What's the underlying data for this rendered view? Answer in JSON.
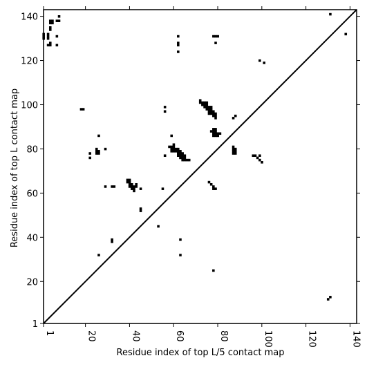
{
  "chart_data": {
    "type": "heatmap",
    "title": "",
    "xlabel": "Residue index of top L/5 contact map",
    "ylabel": "Residue index of top L contact map",
    "xlim": [
      1,
      143
    ],
    "ylim": [
      1,
      143
    ],
    "x_ticks": [
      1,
      20,
      40,
      60,
      80,
      100,
      120,
      140
    ],
    "y_ticks": [
      1,
      20,
      40,
      60,
      80,
      100,
      120,
      140
    ],
    "diagonal_line": true,
    "colors": {
      "contact": "#000000",
      "background": "#ffffff",
      "axes": "#000000"
    },
    "contacts_above_diagonal": [
      [
        1,
        130
      ],
      [
        1,
        131
      ],
      [
        1,
        132
      ],
      [
        3,
        127
      ],
      [
        3,
        130
      ],
      [
        3,
        131
      ],
      [
        3,
        132
      ],
      [
        4,
        127
      ],
      [
        4,
        128
      ],
      [
        4,
        134
      ],
      [
        4,
        135
      ],
      [
        4,
        137
      ],
      [
        4,
        138
      ],
      [
        5,
        137
      ],
      [
        5,
        138
      ],
      [
        7,
        127
      ],
      [
        7,
        131
      ],
      [
        7,
        138
      ],
      [
        8,
        138
      ],
      [
        8,
        140
      ],
      [
        18,
        98
      ],
      [
        19,
        98
      ],
      [
        22,
        76
      ],
      [
        22,
        78
      ],
      [
        25,
        78
      ],
      [
        25,
        79
      ],
      [
        25,
        80
      ],
      [
        26,
        78
      ],
      [
        26,
        79
      ],
      [
        26,
        86
      ],
      [
        29,
        80
      ],
      [
        32,
        38
      ],
      [
        32,
        39
      ],
      [
        39,
        65
      ],
      [
        39,
        66
      ],
      [
        40,
        63
      ],
      [
        40,
        64
      ],
      [
        40,
        65
      ],
      [
        40,
        66
      ],
      [
        41,
        62
      ],
      [
        41,
        63
      ],
      [
        41,
        64
      ],
      [
        42,
        61
      ],
      [
        42,
        62
      ],
      [
        42,
        63
      ],
      [
        43,
        63
      ],
      [
        43,
        64
      ],
      [
        45,
        62
      ],
      [
        45,
        52
      ],
      [
        45,
        53
      ],
      [
        56,
        77
      ],
      [
        56,
        97
      ],
      [
        56,
        99
      ],
      [
        58,
        81
      ],
      [
        59,
        79
      ],
      [
        59,
        80
      ],
      [
        59,
        81
      ],
      [
        59,
        86
      ],
      [
        60,
        79
      ],
      [
        60,
        80
      ],
      [
        60,
        81
      ],
      [
        60,
        82
      ],
      [
        61,
        79
      ],
      [
        61,
        80
      ],
      [
        62,
        77
      ],
      [
        62,
        78
      ],
      [
        62,
        79
      ],
      [
        62,
        80
      ],
      [
        63,
        76
      ],
      [
        63,
        77
      ],
      [
        63,
        78
      ],
      [
        63,
        79
      ],
      [
        64,
        75
      ],
      [
        64,
        76
      ],
      [
        64,
        77
      ],
      [
        64,
        78
      ],
      [
        65,
        75
      ],
      [
        65,
        76
      ],
      [
        65,
        77
      ],
      [
        66,
        75
      ],
      [
        67,
        75
      ],
      [
        62,
        124
      ],
      [
        62,
        127
      ],
      [
        62,
        128
      ],
      [
        62,
        131
      ],
      [
        72,
        101
      ],
      [
        72,
        102
      ],
      [
        73,
        100
      ],
      [
        73,
        101
      ],
      [
        74,
        99
      ],
      [
        74,
        100
      ],
      [
        74,
        101
      ],
      [
        75,
        98
      ],
      [
        75,
        99
      ],
      [
        75,
        100
      ],
      [
        75,
        101
      ],
      [
        76,
        96
      ],
      [
        76,
        97
      ],
      [
        76,
        98
      ],
      [
        76,
        99
      ],
      [
        77,
        96
      ],
      [
        77,
        97
      ],
      [
        77,
        98
      ],
      [
        77,
        99
      ],
      [
        78,
        95
      ],
      [
        78,
        96
      ],
      [
        78,
        97
      ],
      [
        79,
        94
      ],
      [
        79,
        95
      ],
      [
        79,
        96
      ],
      [
        77,
        88
      ],
      [
        78,
        86
      ],
      [
        78,
        87
      ],
      [
        78,
        88
      ],
      [
        78,
        89
      ],
      [
        79,
        86
      ],
      [
        79,
        87
      ],
      [
        79,
        88
      ],
      [
        79,
        89
      ],
      [
        80,
        86
      ],
      [
        80,
        87
      ],
      [
        81,
        87
      ],
      [
        78,
        131
      ],
      [
        79,
        128
      ],
      [
        79,
        131
      ],
      [
        80,
        131
      ],
      [
        87,
        94
      ],
      [
        88,
        95
      ],
      [
        99,
        120
      ],
      [
        101,
        119
      ],
      [
        131,
        141
      ]
    ],
    "contacts_below_diagonal": [
      [
        26,
        32
      ],
      [
        29,
        63
      ],
      [
        32,
        63
      ],
      [
        33,
        63
      ],
      [
        53,
        45
      ],
      [
        55,
        62
      ],
      [
        63,
        32
      ],
      [
        63,
        39
      ],
      [
        76,
        65
      ],
      [
        77,
        64
      ],
      [
        78,
        63
      ],
      [
        78,
        62
      ],
      [
        79,
        62
      ],
      [
        78,
        25
      ],
      [
        87,
        78
      ],
      [
        87,
        79
      ],
      [
        87,
        80
      ],
      [
        87,
        81
      ],
      [
        88,
        78
      ],
      [
        88,
        79
      ],
      [
        88,
        80
      ],
      [
        96,
        77
      ],
      [
        97,
        77
      ],
      [
        98,
        76
      ],
      [
        99,
        75
      ],
      [
        99,
        77
      ],
      [
        100,
        74
      ],
      [
        130,
        12
      ],
      [
        131,
        13
      ],
      [
        138,
        132
      ]
    ]
  }
}
